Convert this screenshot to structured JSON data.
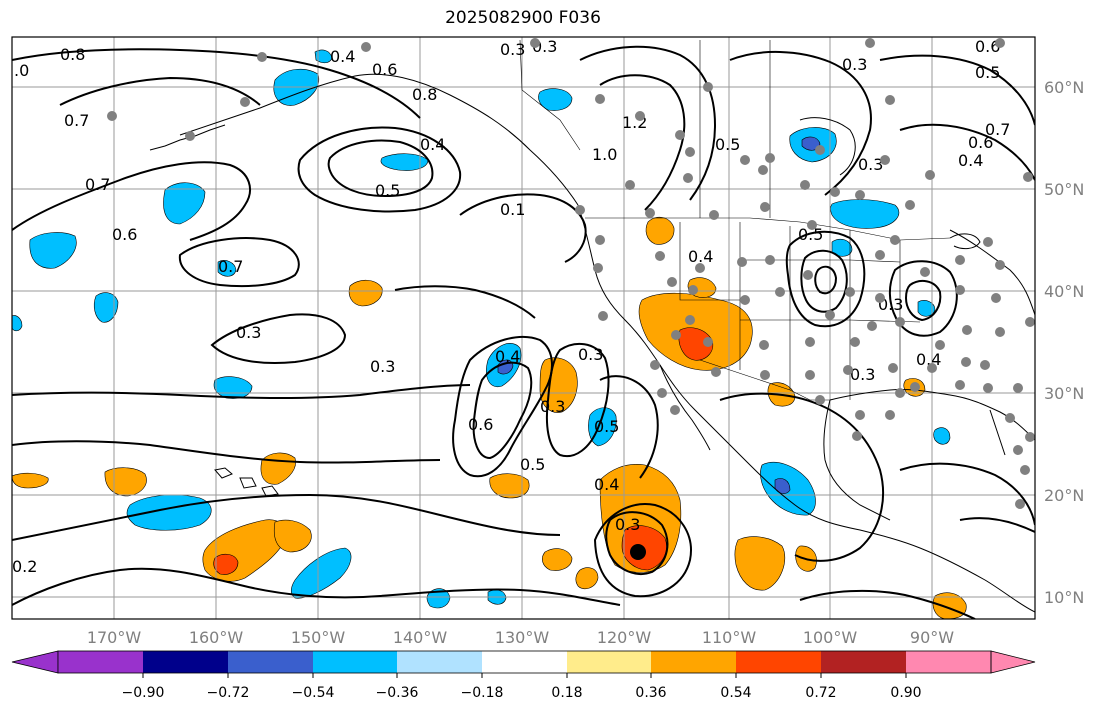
{
  "title": "2025082900 F036",
  "map": {
    "lon_ticks": [
      "170°W",
      "160°W",
      "150°W",
      "140°W",
      "130°W",
      "120°W",
      "110°W",
      "100°W",
      "90°W"
    ],
    "lat_ticks": [
      "60°N",
      "50°N",
      "40°N",
      "30°N",
      "20°N",
      "10°N"
    ],
    "contour_labels": [
      ".0",
      "0.8",
      "0.4",
      "0.3",
      "0.3",
      "0.6",
      "0.8",
      "0.7",
      "0.7",
      "0.6",
      "0.4",
      "0.5",
      "0.1",
      "1.2",
      "1.0",
      "0.5",
      "0.3",
      "0.6",
      "0.5",
      "0.4",
      "0.7",
      "0.3",
      "0.3",
      "0.4",
      "0.6",
      "0.5",
      "0.3",
      "0.3",
      "0.5",
      "0.4",
      "0.3",
      "0.2",
      "0.5",
      "0.3",
      "0.3",
      "0.4",
      "0.3",
      "0.6",
      "0.7",
      "0.4"
    ]
  },
  "colorbar": {
    "ticks": [
      "−0.90",
      "−0.72",
      "−0.54",
      "−0.36",
      "−0.18",
      "0.18",
      "0.36",
      "0.54",
      "0.72",
      "0.90"
    ],
    "colors": [
      "#9932cc",
      "#00008b",
      "#3a5fcd",
      "#00bfff",
      "#b0e2ff",
      "#ffffff",
      "#ffec8b",
      "#ffa500",
      "#ff4500",
      "#b22222",
      "#ff88b0"
    ]
  }
}
